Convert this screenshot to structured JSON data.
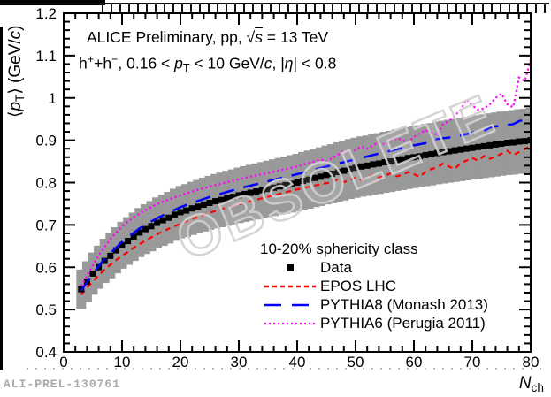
{
  "window": {
    "footer_label": "ALI-PREL-130761"
  },
  "watermark": {
    "text": "OBSOLETE"
  },
  "annotation": {
    "line1_text": "ALICE Preliminary, pp, √s = 13 TeV",
    "line2_text": "h⁺+h⁻, 0.16 < pT < 10 GeV/c, |η| < 0.8",
    "line1_segments": [
      {
        "t": "ALICE Preliminary, pp, "
      },
      {
        "t": "√"
      },
      {
        "t": "s",
        "s": "ovi"
      },
      {
        "t": " = 13 TeV"
      }
    ],
    "line2_segments": [
      {
        "t": "h"
      },
      {
        "t": "+",
        "s": "sup"
      },
      {
        "t": "+h"
      },
      {
        "t": "−",
        "s": "sup"
      },
      {
        "t": ", 0.16 < "
      },
      {
        "t": "p",
        "s": "i"
      },
      {
        "t": "T",
        "s": "sub"
      },
      {
        "t": " < 10 GeV/"
      },
      {
        "t": "c",
        "s": "i"
      },
      {
        "t": ", |"
      },
      {
        "t": "η",
        "s": "i"
      },
      {
        "t": "| < 0.8"
      }
    ]
  },
  "labels": {
    "y_title_segments": [
      {
        "t": "⟨"
      },
      {
        "t": "p",
        "s": "i"
      },
      {
        "t": "T",
        "s": "sub"
      },
      {
        "t": "⟩ (GeV/"
      },
      {
        "t": "c",
        "s": "i"
      },
      {
        "t": ")"
      }
    ],
    "x_title_segments": [
      {
        "t": "N",
        "s": "i"
      },
      {
        "t": "ch",
        "s": "sub"
      }
    ]
  },
  "legend": {
    "header": "10-20% sphericity class",
    "items": [
      {
        "label": "Data",
        "symbol": "filled-black-square"
      },
      {
        "label": "EPOS LHC",
        "symbol": "red-short-dashed-line"
      },
      {
        "label": "PYTHIA8 (Monash 2013)",
        "symbol": "blue-long-dashed-line"
      },
      {
        "label": "PYTHIA6 (Perugia 2011)",
        "symbol": "magenta-dotted-line"
      }
    ]
  },
  "colors": {
    "data": "#000000",
    "epos": "#ff0000",
    "pythia8": "#0000ff",
    "pythia6": "#ff00ff",
    "band": "#999999",
    "frame": "#000000",
    "watermark_stroke": "#d0d0d0",
    "footer": "#a9a9a9"
  },
  "chart_data": {
    "type": "scatter",
    "title": "",
    "xlabel": "N_ch",
    "ylabel": "<p_T> (GeV/c)",
    "xlim": [
      0,
      80
    ],
    "ylim": [
      0.4,
      1.2
    ],
    "xticks": [
      "0",
      "10",
      "20",
      "30",
      "40",
      "50",
      "60",
      "70",
      "80"
    ],
    "xtick_values": [
      0,
      10,
      20,
      30,
      40,
      50,
      60,
      70,
      80
    ],
    "yticks": [
      "0.4",
      "0.5",
      "0.6",
      "0.7",
      "0.8",
      "0.9",
      "1",
      "1.1",
      "1.2"
    ],
    "ytick_values": [
      0.4,
      0.5,
      0.6,
      0.7,
      0.8,
      0.9,
      1.0,
      1.1,
      1.2
    ],
    "x_minor_step": 2,
    "y_minor_step": 0.02,
    "grid": false,
    "legend_position": "lower-right-inside",
    "band_fraction": 0.085,
    "series": [
      {
        "name": "Data",
        "type": "scatter",
        "marker": "square",
        "has_band": true,
        "x": [
          3,
          4,
          5,
          6,
          7,
          8,
          9,
          10,
          11,
          12,
          13,
          14,
          15,
          16,
          17,
          18,
          19,
          20,
          21,
          22,
          23,
          24,
          25,
          26,
          27,
          28,
          29,
          30,
          31,
          32,
          33,
          34,
          35,
          36,
          37,
          38,
          39,
          40,
          41,
          42,
          43,
          44,
          45,
          46,
          47,
          48,
          49,
          50,
          51,
          52,
          53,
          54,
          55,
          56,
          57,
          58,
          59,
          60,
          61,
          62,
          63,
          64,
          65,
          66,
          67,
          68,
          69,
          70,
          71,
          72,
          73,
          74,
          75,
          76,
          77,
          78,
          79,
          80
        ],
        "y": [
          0.548,
          0.566,
          0.585,
          0.6,
          0.615,
          0.627,
          0.64,
          0.652,
          0.662,
          0.672,
          0.682,
          0.69,
          0.697,
          0.705,
          0.711,
          0.717,
          0.724,
          0.73,
          0.734,
          0.739,
          0.743,
          0.748,
          0.752,
          0.756,
          0.759,
          0.763,
          0.766,
          0.77,
          0.773,
          0.776,
          0.779,
          0.782,
          0.785,
          0.788,
          0.791,
          0.794,
          0.797,
          0.8,
          0.804,
          0.807,
          0.811,
          0.814,
          0.818,
          0.821,
          0.825,
          0.828,
          0.832,
          0.835,
          0.838,
          0.84,
          0.843,
          0.845,
          0.848,
          0.85,
          0.853,
          0.855,
          0.858,
          0.86,
          0.862,
          0.865,
          0.867,
          0.87,
          0.872,
          0.874,
          0.876,
          0.878,
          0.88,
          0.882,
          0.884,
          0.886,
          0.888,
          0.89,
          0.892,
          0.894,
          0.895,
          0.897,
          0.898,
          0.9
        ]
      },
      {
        "name": "EPOS LHC",
        "type": "line",
        "line_style": "short-dash",
        "points": [
          [
            3,
            0.535
          ],
          [
            4,
            0.552
          ],
          [
            5,
            0.567
          ],
          [
            6,
            0.581
          ],
          [
            7,
            0.594
          ],
          [
            8,
            0.606
          ],
          [
            9,
            0.617
          ],
          [
            10,
            0.627
          ],
          [
            12,
            0.646
          ],
          [
            14,
            0.663
          ],
          [
            16,
            0.678
          ],
          [
            18,
            0.691
          ],
          [
            20,
            0.703
          ],
          [
            22,
            0.714
          ],
          [
            24,
            0.724
          ],
          [
            26,
            0.733
          ],
          [
            28,
            0.741
          ],
          [
            30,
            0.749
          ],
          [
            32,
            0.756
          ],
          [
            34,
            0.763
          ],
          [
            36,
            0.77
          ],
          [
            38,
            0.777
          ],
          [
            40,
            0.784
          ],
          [
            42,
            0.79
          ],
          [
            44,
            0.796
          ],
          [
            46,
            0.801
          ],
          [
            47,
            0.808
          ],
          [
            48,
            0.801
          ],
          [
            49,
            0.806
          ],
          [
            50,
            0.812
          ],
          [
            51,
            0.806
          ],
          [
            52,
            0.812
          ],
          [
            53,
            0.818
          ],
          [
            54,
            0.812
          ],
          [
            55,
            0.816
          ],
          [
            56,
            0.822
          ],
          [
            57,
            0.815
          ],
          [
            58,
            0.818
          ],
          [
            59,
            0.825
          ],
          [
            60,
            0.82
          ],
          [
            61,
            0.813
          ],
          [
            62,
            0.826
          ],
          [
            63,
            0.832
          ],
          [
            64,
            0.836
          ],
          [
            65,
            0.845
          ],
          [
            66,
            0.838
          ],
          [
            67,
            0.832
          ],
          [
            68,
            0.846
          ],
          [
            69,
            0.852
          ],
          [
            70,
            0.858
          ],
          [
            71,
            0.852
          ],
          [
            72,
            0.863
          ],
          [
            73,
            0.856
          ],
          [
            74,
            0.862
          ],
          [
            75,
            0.868
          ],
          [
            76,
            0.875
          ],
          [
            77,
            0.865
          ],
          [
            78,
            0.872
          ],
          [
            79,
            0.88
          ],
          [
            80,
            0.886
          ]
        ]
      },
      {
        "name": "PYTHIA8 (Monash 2013)",
        "type": "line",
        "line_style": "long-dash",
        "points": [
          [
            3,
            0.545
          ],
          [
            5,
            0.585
          ],
          [
            7,
            0.62
          ],
          [
            10,
            0.66
          ],
          [
            13,
            0.692
          ],
          [
            16,
            0.716
          ],
          [
            20,
            0.742
          ],
          [
            25,
            0.766
          ],
          [
            30,
            0.786
          ],
          [
            35,
            0.803
          ],
          [
            40,
            0.82
          ],
          [
            45,
            0.838
          ],
          [
            50,
            0.855
          ],
          [
            55,
            0.872
          ],
          [
            60,
            0.888
          ],
          [
            63,
            0.896
          ],
          [
            64,
            0.903
          ],
          [
            67,
            0.908
          ],
          [
            70,
            0.918
          ],
          [
            72,
            0.922
          ],
          [
            73,
            0.93
          ],
          [
            75,
            0.935
          ],
          [
            77,
            0.938
          ],
          [
            78,
            0.945
          ],
          [
            80,
            0.952
          ]
        ]
      },
      {
        "name": "PYTHIA6 (Perugia 2011)",
        "type": "line",
        "line_style": "dotted",
        "points": [
          [
            3,
            0.555
          ],
          [
            4,
            0.58
          ],
          [
            5,
            0.605
          ],
          [
            6,
            0.628
          ],
          [
            7,
            0.648
          ],
          [
            8,
            0.666
          ],
          [
            9,
            0.682
          ],
          [
            10,
            0.696
          ],
          [
            11,
            0.708
          ],
          [
            12,
            0.718
          ],
          [
            13,
            0.727
          ],
          [
            14,
            0.735
          ],
          [
            15,
            0.742
          ],
          [
            16,
            0.749
          ],
          [
            18,
            0.76
          ],
          [
            20,
            0.77
          ],
          [
            22,
            0.779
          ],
          [
            24,
            0.787
          ],
          [
            26,
            0.794
          ],
          [
            28,
            0.801
          ],
          [
            30,
            0.808
          ],
          [
            32,
            0.814
          ],
          [
            34,
            0.82
          ],
          [
            36,
            0.826
          ],
          [
            38,
            0.832
          ],
          [
            40,
            0.838
          ],
          [
            42,
            0.846
          ],
          [
            44,
            0.855
          ],
          [
            45,
            0.85
          ],
          [
            46,
            0.858
          ],
          [
            47,
            0.866
          ],
          [
            48,
            0.875
          ],
          [
            49,
            0.87
          ],
          [
            50,
            0.878
          ],
          [
            51,
            0.885
          ],
          [
            52,
            0.88
          ],
          [
            53,
            0.888
          ],
          [
            54,
            0.896
          ],
          [
            55,
            0.89
          ],
          [
            56,
            0.898
          ],
          [
            57,
            0.906
          ],
          [
            58,
            0.9
          ],
          [
            59,
            0.895
          ],
          [
            60,
            0.908
          ],
          [
            61,
            0.916
          ],
          [
            62,
            0.924
          ],
          [
            63,
            0.918
          ],
          [
            64,
            0.912
          ],
          [
            65,
            0.938
          ],
          [
            66,
            0.945
          ],
          [
            67,
            0.958
          ],
          [
            68,
            0.972
          ],
          [
            69,
            0.996
          ],
          [
            70,
            0.982
          ],
          [
            71,
            0.972
          ],
          [
            72,
            0.975
          ],
          [
            73,
            0.985
          ],
          [
            74,
            1.0
          ],
          [
            75,
            1.01
          ],
          [
            76,
            0.985
          ],
          [
            77,
            0.978
          ],
          [
            78,
            1.048
          ],
          [
            79,
            1.04
          ],
          [
            80,
            1.09
          ]
        ]
      }
    ]
  }
}
